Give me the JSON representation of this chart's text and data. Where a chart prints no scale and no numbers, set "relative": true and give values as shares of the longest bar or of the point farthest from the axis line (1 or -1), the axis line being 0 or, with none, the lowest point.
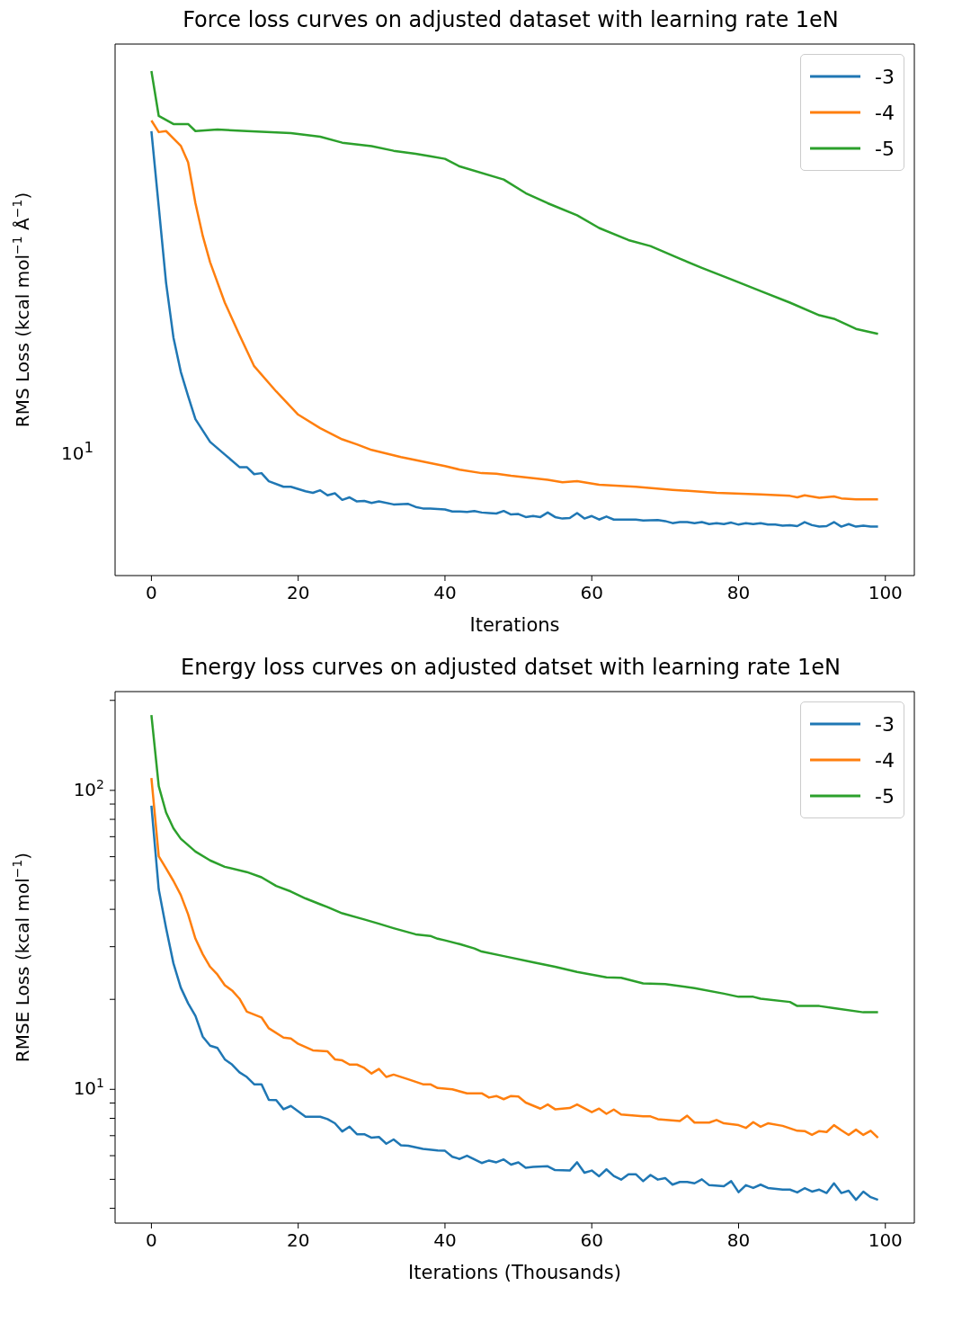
{
  "chart_data": [
    {
      "type": "line",
      "title": "Force loss curves on adjusted dataset with learning rate 1eN",
      "xlabel": "Iterations",
      "ylabel": "RMS Loss (kcal mol$^{−1}$ Å$^{−1}$)",
      "legend": "top right",
      "xlim": [
        -4.95,
        103.95
      ],
      "xticks": [
        0,
        20,
        40,
        60,
        80,
        100
      ],
      "relative": true,
      "annotations": [
        "10$^{1}$"
      ],
      "series": [
        {
          "name": "-3",
          "color": "#1f77b4",
          "x": [
            0,
            1,
            2,
            3,
            4,
            5,
            6,
            8,
            10,
            12,
            13,
            14,
            15,
            16,
            18,
            19,
            21,
            22,
            23,
            24,
            25,
            26,
            27,
            28,
            29,
            30,
            31,
            33,
            35,
            36,
            37,
            38,
            40,
            41,
            42,
            43,
            44,
            45,
            46,
            47,
            48,
            49,
            50,
            51,
            52,
            53,
            54,
            55,
            56,
            57,
            58,
            59,
            60,
            61,
            62,
            63,
            65,
            66,
            67,
            69,
            70,
            71,
            72,
            73,
            74,
            75,
            76,
            77,
            78,
            79,
            80,
            81,
            82,
            83,
            84,
            85,
            86,
            87,
            88,
            89,
            90,
            91,
            92,
            93,
            94,
            95,
            96,
            97,
            98,
            99
          ],
          "values": [
            0.881,
            0.731,
            0.58,
            0.472,
            0.404,
            0.356,
            0.31,
            0.265,
            0.24,
            0.215,
            0.215,
            0.201,
            0.203,
            0.187,
            0.176,
            0.176,
            0.167,
            0.164,
            0.169,
            0.159,
            0.163,
            0.15,
            0.155,
            0.147,
            0.148,
            0.144,
            0.147,
            0.141,
            0.142,
            0.136,
            0.133,
            0.133,
            0.131,
            0.127,
            0.127,
            0.126,
            0.128,
            0.125,
            0.124,
            0.123,
            0.128,
            0.121,
            0.122,
            0.116,
            0.118,
            0.116,
            0.125,
            0.116,
            0.113,
            0.114,
            0.124,
            0.113,
            0.118,
            0.111,
            0.117,
            0.111,
            0.111,
            0.111,
            0.109,
            0.11,
            0.108,
            0.104,
            0.106,
            0.106,
            0.104,
            0.106,
            0.102,
            0.104,
            0.102,
            0.105,
            0.101,
            0.104,
            0.102,
            0.104,
            0.101,
            0.101,
            0.099,
            0.1,
            0.098,
            0.106,
            0.1,
            0.097,
            0.098,
            0.106,
            0.097,
            0.102,
            0.097,
            0.099,
            0.097,
            0.097
          ]
        },
        {
          "name": "-4",
          "color": "#ff7f0e",
          "x": [
            0,
            1,
            2,
            4,
            5,
            6,
            7,
            8,
            10,
            12,
            14,
            17,
            20,
            23,
            26,
            28,
            30,
            34,
            37,
            40,
            42,
            45,
            47,
            49,
            54,
            56,
            58,
            61,
            66,
            71,
            77,
            83,
            87,
            88,
            89,
            91,
            93,
            94,
            96,
            99
          ],
          "values": [
            0.902,
            0.879,
            0.881,
            0.852,
            0.819,
            0.738,
            0.673,
            0.621,
            0.541,
            0.477,
            0.415,
            0.365,
            0.319,
            0.292,
            0.27,
            0.26,
            0.249,
            0.235,
            0.226,
            0.217,
            0.21,
            0.203,
            0.202,
            0.198,
            0.19,
            0.185,
            0.187,
            0.18,
            0.176,
            0.17,
            0.164,
            0.161,
            0.158,
            0.155,
            0.159,
            0.154,
            0.157,
            0.153,
            0.151,
            0.151
          ]
        },
        {
          "name": "-5",
          "color": "#2ca02c",
          "x": [
            0,
            1,
            3,
            5,
            6,
            9,
            13,
            19,
            23,
            26,
            30,
            33,
            36,
            38,
            40,
            42,
            48,
            51,
            54,
            58,
            61,
            65,
            68,
            72,
            75,
            79,
            83,
            87,
            91,
            93,
            96,
            99
          ],
          "values": [
            1,
            0.911,
            0.895,
            0.895,
            0.881,
            0.884,
            0.881,
            0.877,
            0.87,
            0.858,
            0.851,
            0.842,
            0.836,
            0.831,
            0.826,
            0.811,
            0.785,
            0.758,
            0.738,
            0.714,
            0.689,
            0.665,
            0.653,
            0.628,
            0.61,
            0.587,
            0.564,
            0.541,
            0.516,
            0.509,
            0.489,
            0.479
          ]
        }
      ]
    },
    {
      "type": "line",
      "title": "Energy loss curves on adjusted datset with learning rate 1eN",
      "xlabel": "Iterations (Thousands)",
      "ylabel": "RMSE Loss (kcal mol$^{−1}$)",
      "log": "y",
      "legend": "top right",
      "xlim": [
        -4.95,
        103.95
      ],
      "xticks": [
        0,
        20,
        40,
        60,
        80,
        100
      ],
      "ylim": [
        3.57,
        214
      ],
      "yticks": [
        {
          "value": 4,
          "label": null
        },
        {
          "value": 5,
          "label": null
        },
        {
          "value": 6,
          "label": null
        },
        {
          "value": 7,
          "label": null
        },
        {
          "value": 8,
          "label": null
        },
        {
          "value": 9,
          "label": null
        },
        {
          "value": 10,
          "label": "10$^{1}$"
        },
        {
          "value": 20,
          "label": null
        },
        {
          "value": 30,
          "label": null
        },
        {
          "value": 40,
          "label": null
        },
        {
          "value": 50,
          "label": null
        },
        {
          "value": 60,
          "label": null
        },
        {
          "value": 70,
          "label": null
        },
        {
          "value": 80,
          "label": null
        },
        {
          "value": 90,
          "label": null
        },
        {
          "value": 100,
          "label": "10$^{2}$"
        },
        {
          "value": 200,
          "label": null
        }
      ],
      "series": [
        {
          "name": "-3",
          "color": "#1f77b4",
          "x": [
            0,
            1,
            2,
            3,
            4,
            5,
            6,
            7,
            8,
            9,
            10,
            11,
            12,
            13,
            14,
            15,
            16,
            17,
            18,
            19,
            21,
            23,
            24,
            25,
            26,
            27,
            28,
            29,
            30,
            31,
            32,
            33,
            34,
            35,
            37,
            39,
            40,
            41,
            42,
            43,
            45,
            46,
            47,
            48,
            49,
            50,
            51,
            52,
            54,
            55,
            57,
            58,
            59,
            60,
            61,
            62,
            63,
            64,
            65,
            66,
            67,
            68,
            69,
            70,
            71,
            72,
            73,
            74,
            75,
            76,
            78,
            79,
            80,
            81,
            82,
            83,
            84,
            86,
            87,
            88,
            89,
            90,
            91,
            92,
            93,
            94,
            95,
            96,
            97,
            98,
            99
          ],
          "values": [
            88.9,
            46.6,
            34.6,
            26.4,
            21.9,
            19.4,
            17.6,
            15.0,
            14.0,
            13.75,
            12.6,
            12.1,
            11.4,
            11.0,
            10.4,
            10.4,
            9.22,
            9.2,
            8.58,
            8.8,
            8.1,
            8.1,
            7.95,
            7.7,
            7.23,
            7.5,
            7.08,
            7.08,
            6.89,
            6.93,
            6.58,
            6.8,
            6.5,
            6.48,
            6.32,
            6.25,
            6.23,
            5.95,
            5.85,
            6.0,
            5.67,
            5.78,
            5.7,
            5.83,
            5.6,
            5.7,
            5.47,
            5.5,
            5.53,
            5.37,
            5.35,
            5.7,
            5.26,
            5.35,
            5.12,
            5.4,
            5.13,
            4.99,
            5.2,
            5.2,
            4.93,
            5.17,
            4.99,
            5.05,
            4.8,
            4.9,
            4.9,
            4.85,
            5.0,
            4.78,
            4.74,
            4.93,
            4.53,
            4.78,
            4.68,
            4.8,
            4.68,
            4.62,
            4.62,
            4.52,
            4.67,
            4.55,
            4.62,
            4.5,
            4.85,
            4.5,
            4.58,
            4.27,
            4.55,
            4.36,
            4.27
          ]
        },
        {
          "name": "-4",
          "color": "#ff7f0e",
          "x": [
            0,
            1,
            2,
            3,
            4,
            5,
            6,
            7,
            8,
            9,
            10,
            11,
            12,
            13,
            15,
            16,
            18,
            19,
            20,
            22,
            24,
            25,
            26,
            27,
            28,
            29,
            30,
            31,
            32,
            33,
            35,
            37,
            38,
            39,
            41,
            43,
            45,
            46,
            47,
            48,
            49,
            50,
            51,
            53,
            54,
            55,
            57,
            58,
            60,
            61,
            62,
            63,
            64,
            67,
            68,
            69,
            72,
            73,
            74,
            76,
            77,
            78,
            80,
            81,
            82,
            83,
            84,
            86,
            88,
            89,
            90,
            91,
            92,
            93,
            94,
            95,
            96,
            97,
            98,
            99
          ],
          "values": [
            109.9,
            60.2,
            54.8,
            49.8,
            44.7,
            38.5,
            31.9,
            28.3,
            25.7,
            24.2,
            22.3,
            21.4,
            20.1,
            18.2,
            17.4,
            16.0,
            14.9,
            14.8,
            14.2,
            13.5,
            13.4,
            12.6,
            12.5,
            12.1,
            12.1,
            11.8,
            11.3,
            11.7,
            11.0,
            11.2,
            10.8,
            10.4,
            10.4,
            10.1,
            10.0,
            9.7,
            9.7,
            9.39,
            9.5,
            9.27,
            9.5,
            9.46,
            9.03,
            8.62,
            8.9,
            8.58,
            8.66,
            8.9,
            8.39,
            8.62,
            8.28,
            8.56,
            8.24,
            8.12,
            8.12,
            7.95,
            7.84,
            8.16,
            7.74,
            7.74,
            7.9,
            7.7,
            7.59,
            7.43,
            7.77,
            7.5,
            7.7,
            7.55,
            7.27,
            7.25,
            7.04,
            7.25,
            7.2,
            7.59,
            7.3,
            7.04,
            7.33,
            7.04,
            7.27,
            6.89
          ]
        },
        {
          "name": "-5",
          "color": "#2ca02c",
          "x": [
            0,
            1,
            2,
            3,
            4,
            6,
            8,
            10,
            13,
            15,
            17,
            19,
            21,
            23,
            24,
            26,
            29,
            31,
            33,
            36,
            38,
            39,
            40,
            42,
            44,
            45,
            48,
            52,
            55,
            58,
            62,
            64,
            67,
            70,
            74,
            78,
            80,
            82,
            83,
            87,
            88,
            91,
            93,
            97,
            99
          ],
          "values": [
            178.7,
            103.3,
            84.3,
            74.7,
            68.9,
            62.4,
            58.3,
            55.5,
            53.3,
            51.2,
            47.9,
            45.9,
            43.5,
            41.6,
            40.7,
            38.8,
            37.0,
            35.8,
            34.6,
            33.0,
            32.6,
            31.9,
            31.5,
            30.6,
            29.6,
            28.9,
            27.9,
            26.6,
            25.7,
            24.7,
            23.7,
            23.6,
            22.6,
            22.5,
            21.8,
            20.9,
            20.4,
            20.4,
            20.1,
            19.6,
            19.0,
            19.0,
            18.7,
            18.1,
            18.1
          ]
        }
      ]
    }
  ]
}
